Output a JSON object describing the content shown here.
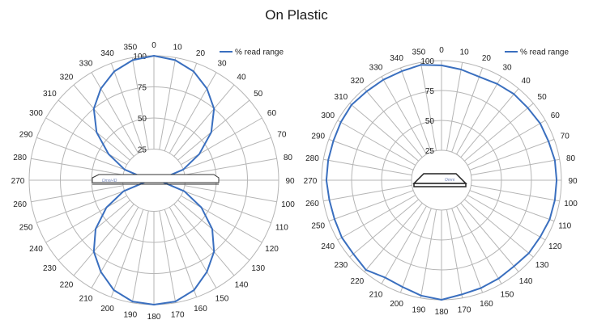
{
  "title": "On Plastic",
  "colors": {
    "series": "#3a6fbf",
    "grid": "#b5b5b5",
    "text": "#222222"
  },
  "chart_data": [
    {
      "type": "polar-line",
      "series_name": "% read range",
      "legend_position": "top-right",
      "radial_ticks": [
        "25",
        "50",
        "75",
        "100"
      ],
      "rlim": [
        0,
        100
      ],
      "angle_labels": [
        "0",
        "10",
        "20",
        "30",
        "40",
        "50",
        "60",
        "70",
        "80",
        "90",
        "100",
        "110",
        "120",
        "130",
        "140",
        "150",
        "160",
        "170",
        "180",
        "190",
        "200",
        "210",
        "220",
        "230",
        "240",
        "250",
        "260",
        "270",
        "280",
        "290",
        "300",
        "310",
        "320",
        "330",
        "340",
        "350"
      ],
      "tag_text": "Omni-ID",
      "angles": [
        0,
        10,
        20,
        30,
        40,
        50,
        60,
        70,
        80,
        90,
        100,
        110,
        120,
        130,
        140,
        150,
        160,
        170,
        180,
        190,
        200,
        210,
        220,
        230,
        240,
        250,
        260,
        270,
        280,
        290,
        300,
        310,
        320,
        330,
        340,
        350
      ],
      "values": [
        100,
        98,
        93,
        85,
        75,
        60,
        42,
        25,
        6,
        0,
        6,
        26,
        44,
        61,
        75,
        85,
        94,
        99,
        100,
        99,
        94,
        85,
        75,
        61,
        44,
        26,
        6,
        0,
        6,
        25,
        42,
        60,
        75,
        85,
        93,
        98
      ]
    },
    {
      "type": "polar-line",
      "series_name": "% read range",
      "legend_position": "top-right",
      "radial_ticks": [
        "25",
        "50",
        "75",
        "100"
      ],
      "rlim": [
        0,
        100
      ],
      "angle_labels": [
        "0",
        "10",
        "20",
        "30",
        "40",
        "50",
        "60",
        "70",
        "80",
        "90",
        "100",
        "110",
        "120",
        "130",
        "140",
        "150",
        "160",
        "170",
        "180",
        "190",
        "200",
        "210",
        "220",
        "230",
        "240",
        "250",
        "260",
        "270",
        "280",
        "290",
        "300",
        "310",
        "320",
        "330",
        "340",
        "350"
      ],
      "tag_text": "Omni",
      "angles": [
        0,
        10,
        20,
        30,
        40,
        50,
        60,
        70,
        80,
        90,
        100,
        110,
        120,
        130,
        140,
        150,
        160,
        170,
        180,
        190,
        200,
        210,
        220,
        230,
        240,
        250,
        260,
        270,
        280,
        290,
        300,
        310,
        320,
        330,
        340,
        350
      ],
      "values": [
        96,
        94,
        92,
        93,
        94,
        94,
        95,
        95,
        96,
        96,
        96,
        96,
        95,
        95,
        94,
        95,
        96,
        97,
        100,
        98,
        95,
        94,
        98,
        96,
        96,
        95,
        95,
        96,
        96,
        96,
        97,
        98,
        97,
        97,
        97,
        98
      ]
    }
  ]
}
